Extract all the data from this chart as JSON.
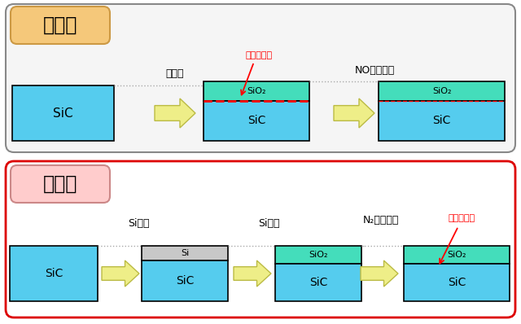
{
  "bg_color": "#ffffff",
  "sic_color": "#55ccee",
  "sio2_color": "#44ddbb",
  "si_color": "#c8c8c8",
  "red_line_color": "#ff0000",
  "arrow_fc": "#eeee88",
  "arrow_ec": "#bbbb44",
  "top_box_bg": "#f5f5f5",
  "top_box_border": "#888888",
  "top_label_bg": "#f5c87a",
  "top_label_border": "#cc9944",
  "top_label_text": "従来法",
  "bottom_label_bg": "#ffcccc",
  "bottom_label_border": "#cc8888",
  "bottom_label_text": "本研究",
  "bottom_box_border": "#dd0000",
  "label1_top": "热酸化",
  "label2_top": "NOガス処理",
  "label_defect": "高密度欠陥",
  "label1_bottom": "Si堆積",
  "label2_bottom": "Si酸化",
  "label3_bottom": "N₂ガス処理",
  "label_quality": "高品質界面",
  "sio2_text": "SiO₂",
  "sic_text": "SiC",
  "si_text": "Si"
}
